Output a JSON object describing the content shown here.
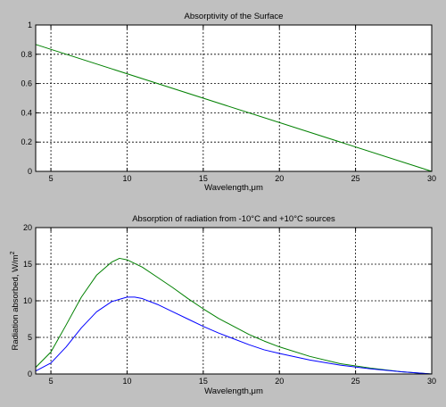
{
  "background_color": "#c0c0c0",
  "chart_data": [
    {
      "type": "line",
      "title": "Absorptivity of the Surface",
      "xlabel": "Wavelength,μm",
      "ylabel": "",
      "xlim": [
        4,
        30
      ],
      "ylim": [
        0,
        1
      ],
      "xticks": [
        5,
        10,
        15,
        20,
        25,
        30
      ],
      "yticks": [
        0,
        0.2,
        0.4,
        0.6,
        0.8,
        1
      ],
      "xtick_labels": [
        "5",
        "10",
        "15",
        "20",
        "25",
        "30"
      ],
      "ytick_labels": [
        "0",
        "0.2",
        "0.4",
        "0.6",
        "0.8",
        "1"
      ],
      "grid": true,
      "series": [
        {
          "color": "#008000",
          "x": [
            4,
            30
          ],
          "y": [
            0.867,
            0.0
          ]
        }
      ]
    },
    {
      "type": "line",
      "title": "Absorption of radiation from -10°C and +10°C sources",
      "xlabel": "Wavelength,μm",
      "ylabel_main": "Radiation absorbed, W/m",
      "ylabel_sup": "2",
      "xlim": [
        4,
        30
      ],
      "ylim": [
        0,
        20
      ],
      "xticks": [
        5,
        10,
        15,
        20,
        25,
        30
      ],
      "yticks": [
        0,
        5,
        10,
        15,
        20
      ],
      "xtick_labels": [
        "5",
        "10",
        "15",
        "20",
        "25",
        "30"
      ],
      "ytick_labels": [
        "0",
        "5",
        "10",
        "15",
        "20"
      ],
      "grid": true,
      "series": [
        {
          "color": "#008000",
          "x": [
            4,
            5,
            6,
            7,
            8,
            9,
            9.5,
            10,
            11,
            12,
            13,
            14,
            15,
            16,
            17,
            18,
            19,
            20,
            22,
            24,
            26,
            28,
            30
          ],
          "y": [
            0.9,
            3.0,
            6.7,
            10.5,
            13.5,
            15.3,
            15.8,
            15.6,
            14.6,
            13.2,
            11.8,
            10.3,
            8.9,
            7.6,
            6.5,
            5.4,
            4.5,
            3.7,
            2.4,
            1.4,
            0.8,
            0.3,
            0.0
          ]
        },
        {
          "color": "#0000ff",
          "x": [
            4,
            5,
            6,
            7,
            8,
            9,
            10,
            10.5,
            11,
            12,
            13,
            14,
            15,
            16,
            17,
            18,
            19,
            20,
            22,
            24,
            26,
            28,
            30
          ],
          "y": [
            0.4,
            1.5,
            3.7,
            6.3,
            8.5,
            9.9,
            10.5,
            10.5,
            10.3,
            9.5,
            8.5,
            7.5,
            6.5,
            5.6,
            4.8,
            4.0,
            3.3,
            2.8,
            1.9,
            1.2,
            0.7,
            0.3,
            0.0
          ]
        }
      ]
    }
  ]
}
